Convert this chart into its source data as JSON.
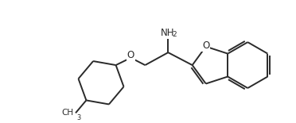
{
  "background_color": "#ffffff",
  "line_color": "#2a2a2a",
  "line_width": 1.4,
  "text_color": "#2a2a2a",
  "font_size": 8.5,
  "xlim": [
    0.0,
    10.5
  ],
  "ylim": [
    0.5,
    4.5
  ],
  "figsize": [
    3.72,
    1.55
  ],
  "dpi": 100
}
